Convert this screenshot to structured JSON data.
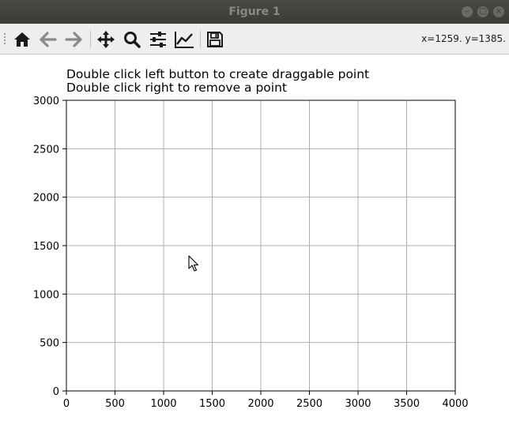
{
  "window": {
    "title": "Figure 1",
    "buttons": [
      "minimize",
      "maximize",
      "close"
    ]
  },
  "toolbar": {
    "items": [
      {
        "name": "home",
        "icon": "home-icon"
      },
      {
        "name": "back",
        "icon": "arrow-left-icon"
      },
      {
        "name": "forward",
        "icon": "arrow-right-icon"
      },
      {
        "name": "pan",
        "icon": "move-icon"
      },
      {
        "name": "zoom",
        "icon": "magnifier-icon"
      },
      {
        "name": "subplots",
        "icon": "sliders-icon"
      },
      {
        "name": "edit-axis",
        "icon": "line-chart-icon"
      },
      {
        "name": "save",
        "icon": "floppy-disk-icon"
      }
    ],
    "coords": "x=1259. y=1385."
  },
  "plot": {
    "title_line1": "Double click left button to create draggable point",
    "title_line2": "Double click right to remove a point"
  },
  "chart_data": {
    "type": "scatter",
    "series": [],
    "x": [],
    "xlim": [
      0,
      4000
    ],
    "ylim": [
      0,
      3000
    ],
    "xticks": [
      "0",
      "500",
      "1000",
      "1500",
      "2000",
      "2500",
      "3000",
      "3500",
      "4000"
    ],
    "yticks": [
      "0",
      "500",
      "1000",
      "1500",
      "2000",
      "2500",
      "3000"
    ],
    "grid": true,
    "xlabel": "",
    "ylabel": "",
    "title": "Double click left button to create draggable point\nDouble click right to remove a point"
  },
  "colors": {
    "titlebar": "#3c3b37",
    "toolbar": "#efeeec",
    "grid": "#b0b0b0",
    "axes": "#000000"
  }
}
